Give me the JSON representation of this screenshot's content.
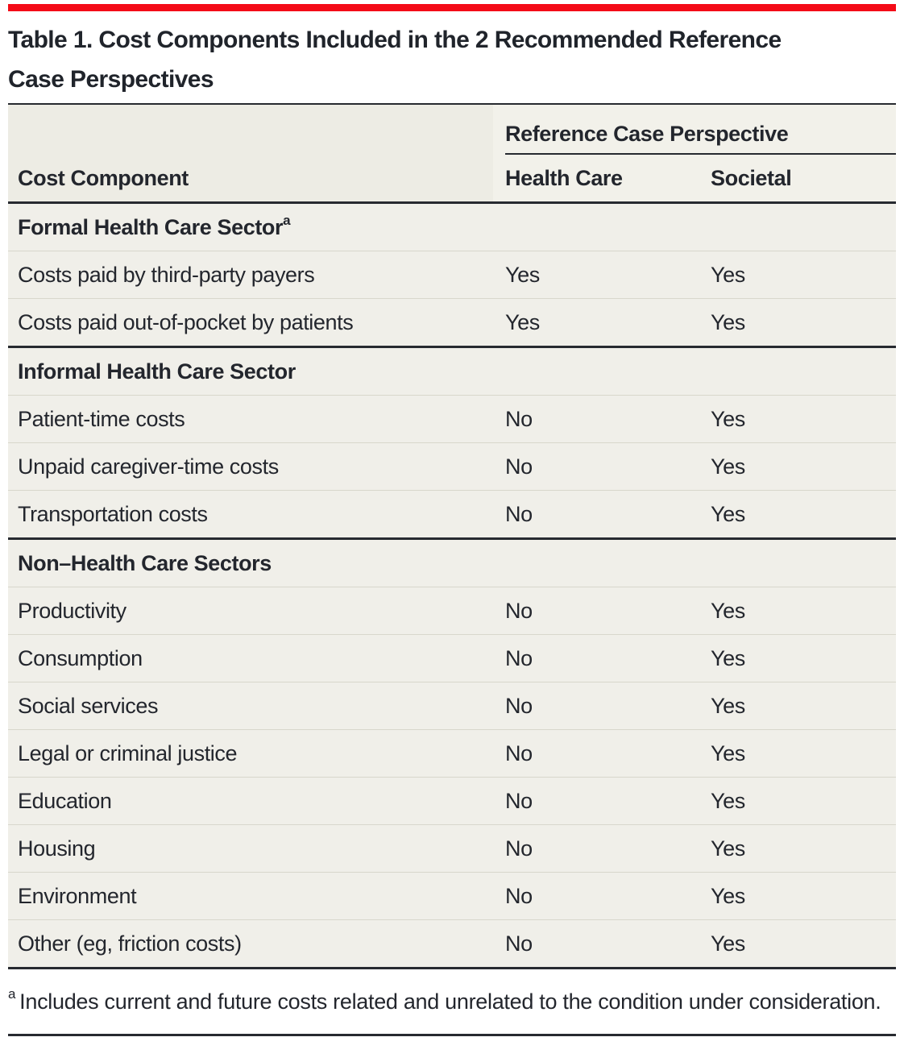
{
  "colors": {
    "accent_red": "#f40b17",
    "table_body_bg": "#f0efe9",
    "header_left_bg": "#edece4",
    "header_right_bg": "#f2f1ea",
    "rule_dark": "#272a30",
    "rule_light": "#d8d7cc",
    "text": "#23262d"
  },
  "title": {
    "lines": [
      "Table 1. Cost Components Included in the 2 Recommended Reference",
      "Case Perspectives"
    ]
  },
  "table": {
    "spanner": "Reference Case Perspective",
    "columns": [
      "Cost Component",
      "Health Care",
      "Societal"
    ],
    "sections": [
      {
        "header": "Formal Health Care Sector",
        "header_superscript": "a",
        "rows": [
          {
            "label": "Costs paid by third-party payers",
            "health_care": "Yes",
            "societal": "Yes"
          },
          {
            "label": "Costs paid out-of-pocket by patients",
            "health_care": "Yes",
            "societal": "Yes"
          }
        ]
      },
      {
        "header": "Informal Health Care Sector",
        "header_superscript": "",
        "rows": [
          {
            "label": "Patient-time costs",
            "health_care": "No",
            "societal": "Yes"
          },
          {
            "label": "Unpaid caregiver-time costs",
            "health_care": "No",
            "societal": "Yes"
          },
          {
            "label": "Transportation costs",
            "health_care": "No",
            "societal": "Yes"
          }
        ]
      },
      {
        "header": "Non–Health Care Sectors",
        "header_superscript": "",
        "rows": [
          {
            "label": "Productivity",
            "health_care": "No",
            "societal": "Yes"
          },
          {
            "label": "Consumption",
            "health_care": "No",
            "societal": "Yes"
          },
          {
            "label": "Social services",
            "health_care": "No",
            "societal": "Yes"
          },
          {
            "label": "Legal or criminal justice",
            "health_care": "No",
            "societal": "Yes"
          },
          {
            "label": "Education",
            "health_care": "No",
            "societal": "Yes"
          },
          {
            "label": "Housing",
            "health_care": "No",
            "societal": "Yes"
          },
          {
            "label": "Environment",
            "health_care": "No",
            "societal": "Yes"
          },
          {
            "label": "Other (eg, friction costs)",
            "health_care": "No",
            "societal": "Yes"
          }
        ]
      }
    ]
  },
  "footnote": {
    "marker": "a",
    "text": "Includes current and future costs related and unrelated to the condition under consideration."
  }
}
